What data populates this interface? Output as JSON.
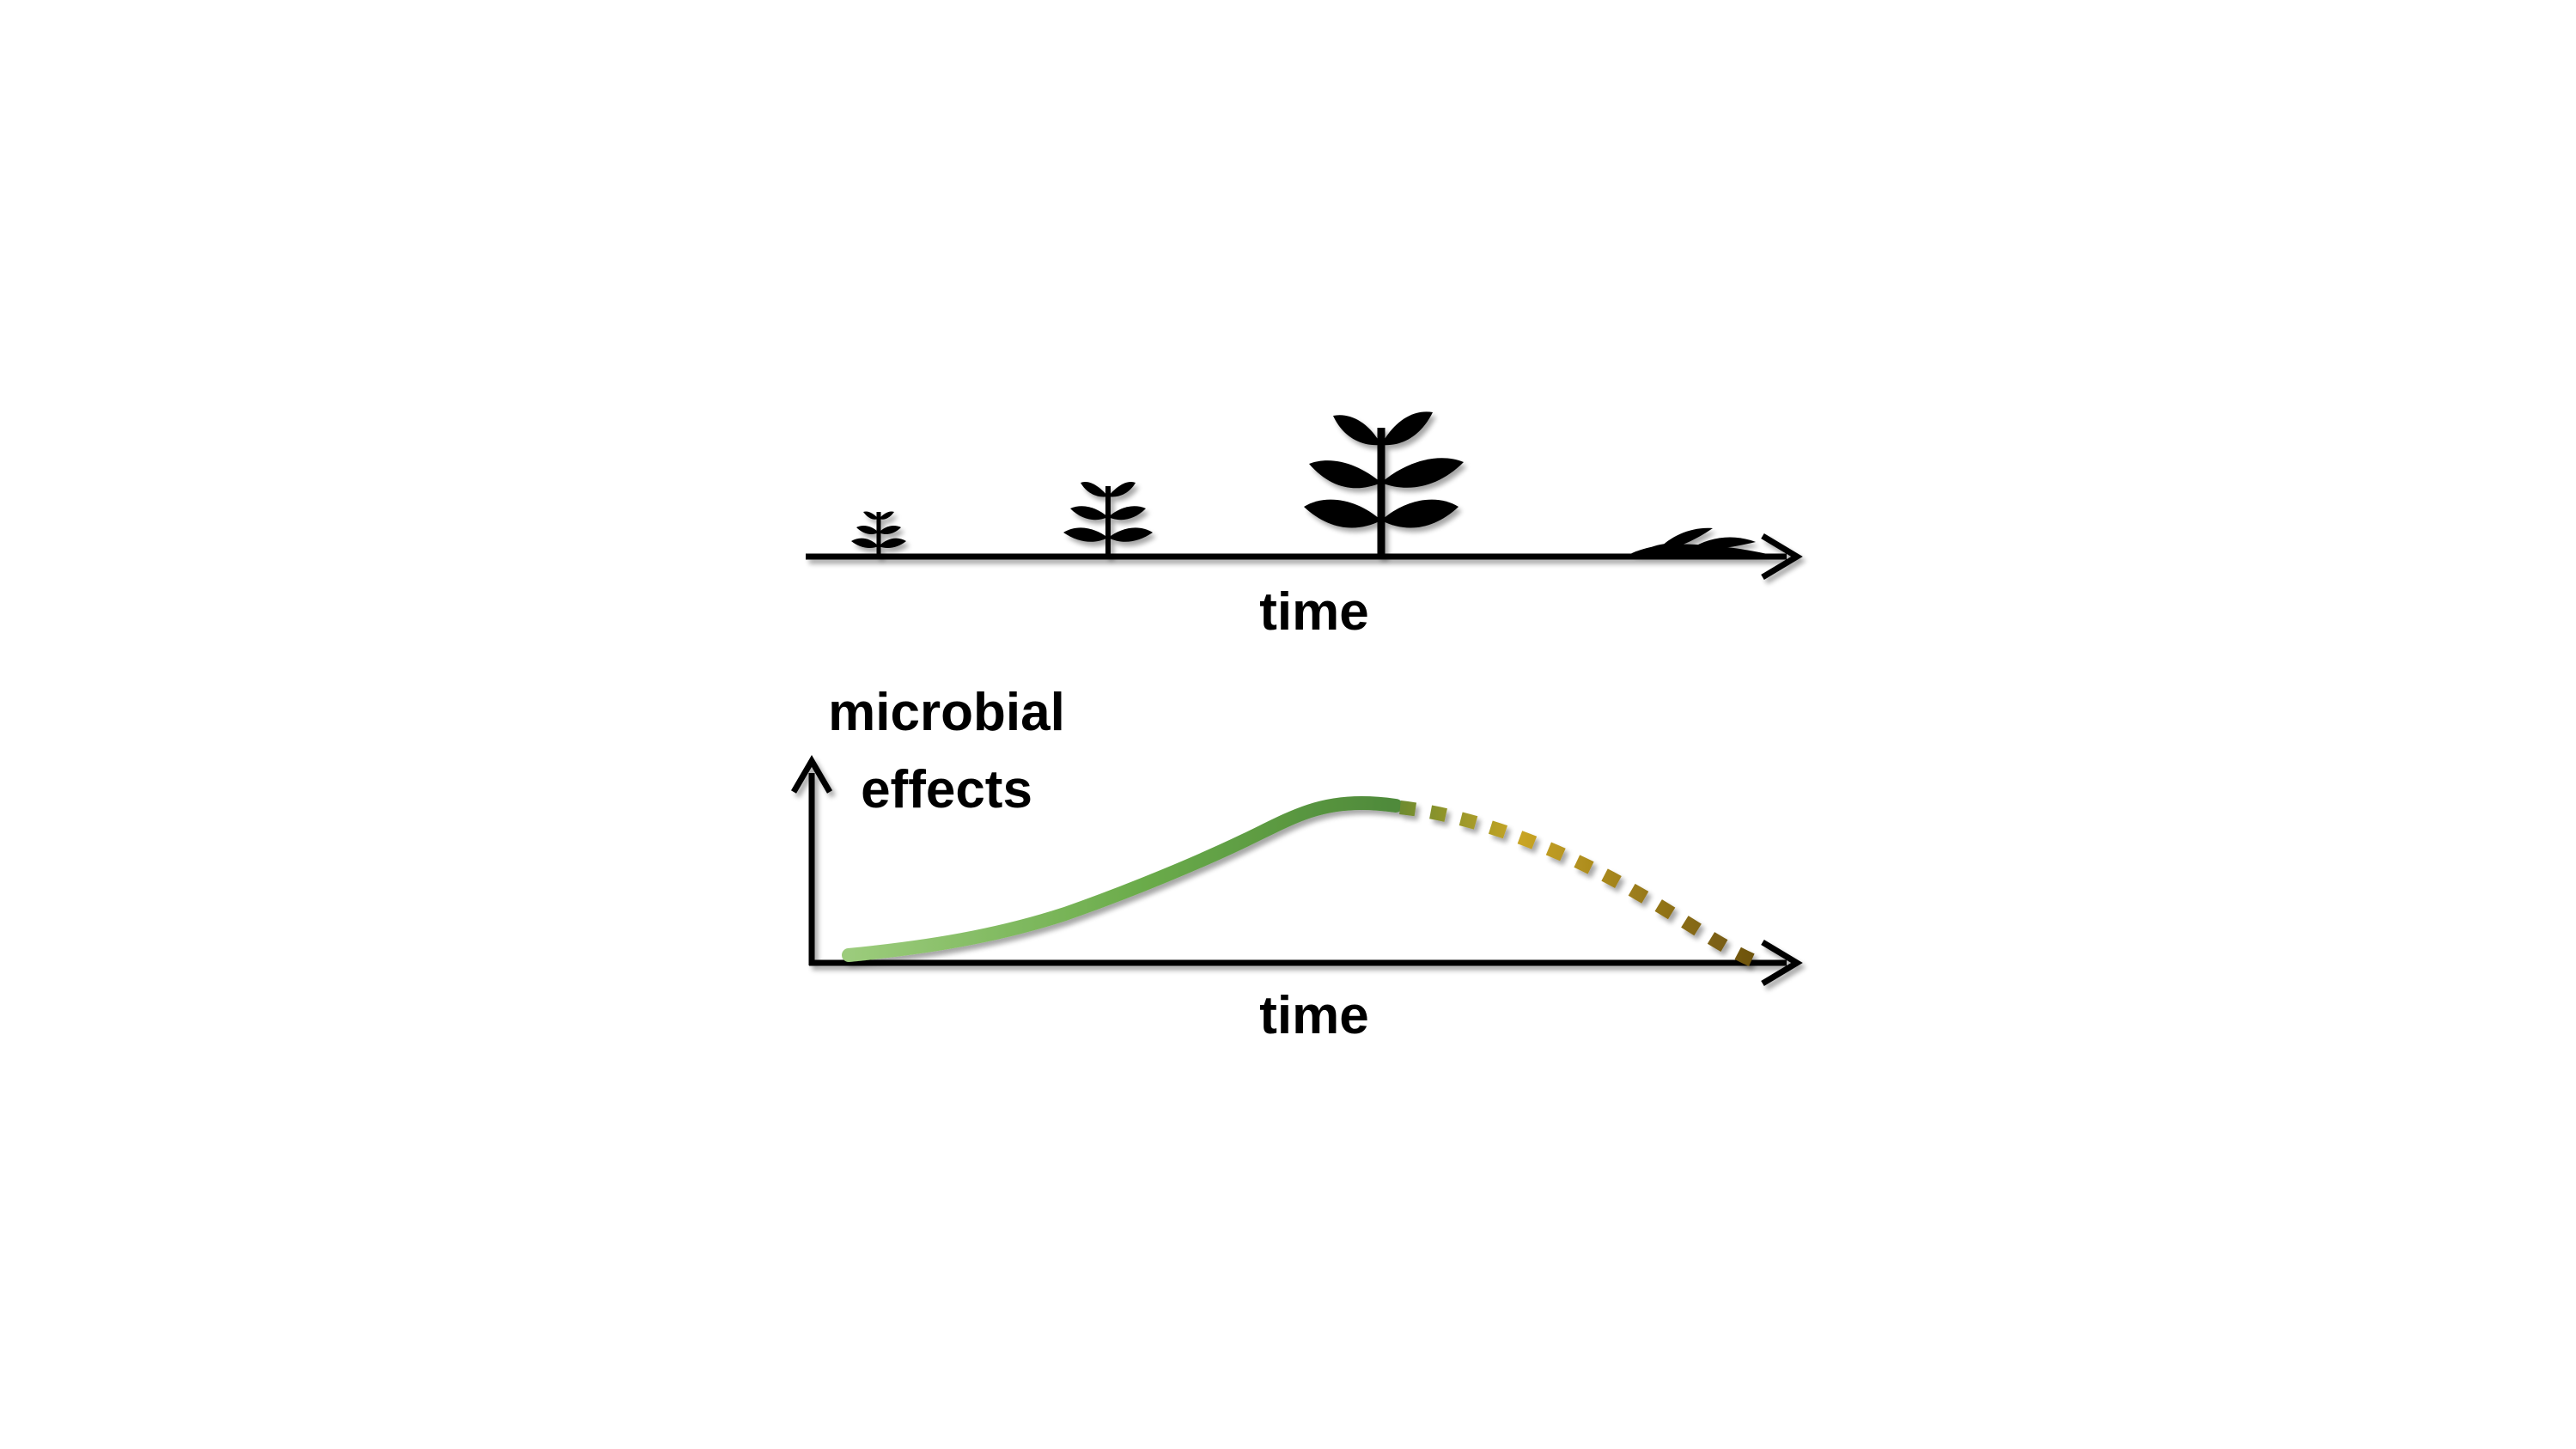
{
  "top_timeline": {
    "axis_label": "time",
    "stages": [
      {
        "name": "seedling",
        "icon": "small-seedling-icon"
      },
      {
        "name": "young plant",
        "icon": "young-plant-icon"
      },
      {
        "name": "mature plant",
        "icon": "mature-plant-icon"
      },
      {
        "name": "dead plant litter",
        "icon": "dead-plant-icon"
      }
    ]
  },
  "effects_plot": {
    "y_label_line1": "microbial",
    "y_label_line2": "effects",
    "x_label": "time",
    "colors": {
      "solid_start": "#9ccc7c",
      "solid_mid": "#6aab4a",
      "solid_end": "#4f8a3a",
      "dashed_start": "#6b8a30",
      "dashed_mid": "#c9a525",
      "dashed_end": "#6e5410"
    }
  }
}
